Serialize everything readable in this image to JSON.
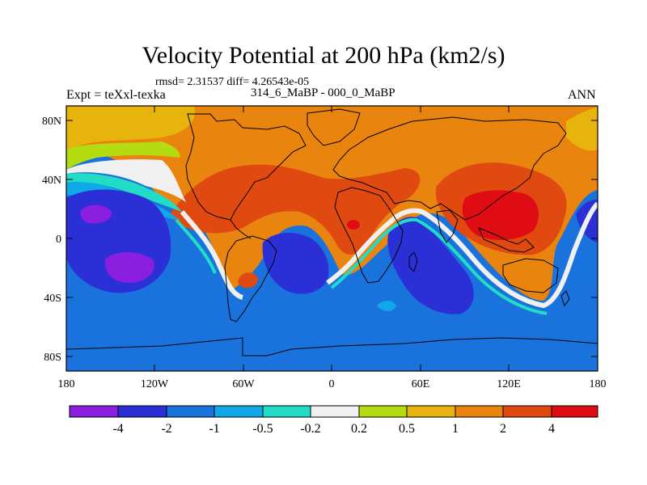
{
  "title": "Velocity Potential at 200 hPa (km2/s)",
  "stats_line": "rmsd= 2.31537 diff= 4.26543e-05",
  "experiment_label": "Expt = teXxl-texka",
  "comparison_label": "314_6_MaBP - 000_0_MaBP",
  "season_label": "ANN",
  "map": {
    "lat_ticks": [
      "80N",
      "40N",
      "0",
      "40S",
      "80S"
    ],
    "lon_ticks": [
      "180",
      "120W",
      "60W",
      "0",
      "60E",
      "120E",
      "180"
    ]
  },
  "colorbar": {
    "colors": [
      "#8a1fe0",
      "#2b2fd6",
      "#1a73dd",
      "#0fa8e8",
      "#22dcc8",
      "#f0f0f0",
      "#b3dd10",
      "#e6b40c",
      "#e9850e",
      "#e04a10",
      "#e00c14"
    ],
    "labels": [
      "-4",
      "-2",
      "-1",
      "-0.5",
      "-0.2",
      "0.2",
      "0.5",
      "1",
      "2",
      "4"
    ]
  },
  "colors": {
    "outline": "#000000"
  }
}
